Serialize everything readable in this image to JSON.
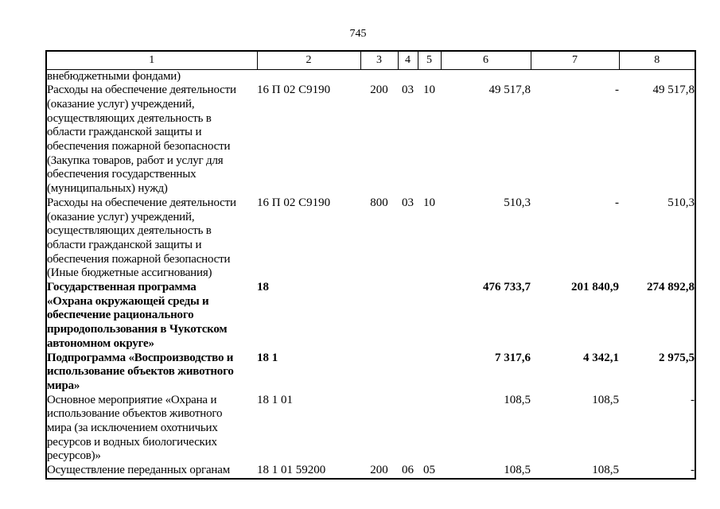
{
  "page_number": "745",
  "table": {
    "header": [
      "1",
      "2",
      "3",
      "4",
      "5",
      "6",
      "7",
      "8"
    ],
    "rows": [
      {
        "name": "внебюджетными фондами)",
        "code": "",
        "c3": "",
        "c4": "",
        "c5": "",
        "c6": "",
        "c7": "",
        "c8": "",
        "bold": false
      },
      {
        "name": "Расходы на обеспечение деятельности\n(оказание услуг) учреждений,\nосуществляющих деятельность в\nобласти гражданской защиты и\nобеспечения пожарной безопасности\n(Закупка товаров, работ и услуг для\nобеспечения государственных\n(муниципальных) нужд)",
        "code": "16 П 02 С9190",
        "c3": "200",
        "c4": "03",
        "c5": "10",
        "c6": "49 517,8",
        "c7": "-",
        "c8": "49 517,8",
        "bold": false
      },
      {
        "name": "Расходы на обеспечение деятельности\n(оказание услуг) учреждений,\nосуществляющих деятельность в\nобласти гражданской защиты и\nобеспечения пожарной безопасности\n(Иные бюджетные ассигнования)",
        "code": "16 П 02 С9190",
        "c3": "800",
        "c4": "03",
        "c5": "10",
        "c6": "510,3",
        "c7": "-",
        "c8": "510,3",
        "bold": false
      },
      {
        "name": "Государственная программа\n«Охрана окружающей среды и\nобеспечение рационального\nприродопользования в Чукотском\nавтономном округе»",
        "code": "18",
        "c3": "",
        "c4": "",
        "c5": "",
        "c6": "476 733,7",
        "c7": "201 840,9",
        "c8": "274 892,8",
        "bold": true
      },
      {
        "name": "Подпрограмма «Воспроизводство и\nиспользование объектов животного\nмира»",
        "code": "18 1",
        "c3": "",
        "c4": "",
        "c5": "",
        "c6": "7 317,6",
        "c7": "4 342,1",
        "c8": "2 975,5",
        "bold": true
      },
      {
        "name": "Основное мероприятие «Охрана и\nиспользование объектов животного\nмира (за исключением охотничьих\nресурсов и водных биологических\nресурсов)»",
        "code": "18 1 01",
        "c3": "",
        "c4": "",
        "c5": "",
        "c6": "108,5",
        "c7": "108,5",
        "c8": "-",
        "bold": false
      },
      {
        "name": "Осуществление переданных органам",
        "code": "18 1 01 59200",
        "c3": "200",
        "c4": "06",
        "c5": "05",
        "c6": "108,5",
        "c7": "108,5",
        "c8": "-",
        "bold": false
      }
    ]
  }
}
